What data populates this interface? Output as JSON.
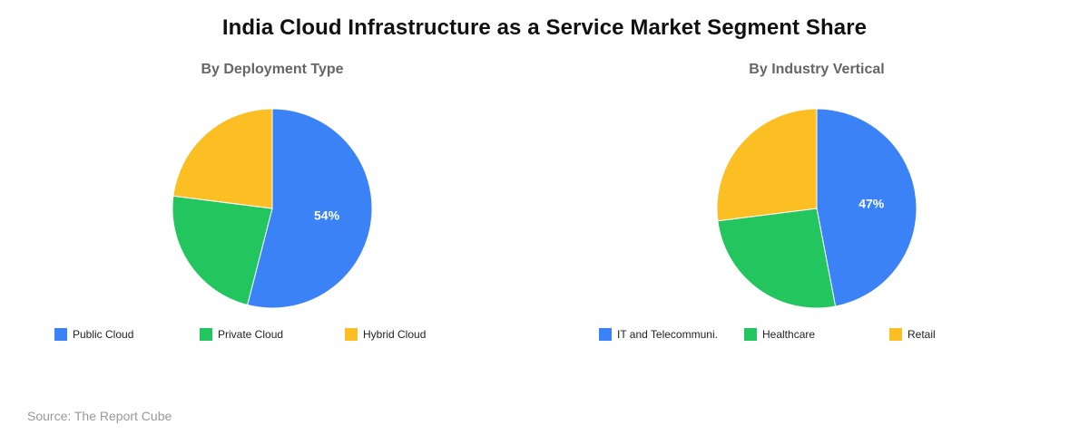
{
  "title": "India Cloud Infrastructure as a Service Market Segment Share",
  "source": "Source: The Report Cube",
  "chart_data": [
    {
      "type": "pie",
      "title": "By Deployment Type",
      "categories": [
        "Public Cloud",
        "Private Cloud",
        "Hybrid Cloud"
      ],
      "values": [
        54,
        23,
        23
      ],
      "colors": [
        "#3b82f6",
        "#22c55e",
        "#fbbf24"
      ],
      "data_labels": [
        "54%",
        "",
        ""
      ],
      "legend_position": "bottom",
      "start_angle": "12 o'clock, clockwise"
    },
    {
      "type": "pie",
      "title": "By Industry Vertical",
      "categories": [
        "IT and Telecommuni.",
        "Healthcare",
        "Retail"
      ],
      "values": [
        47,
        26,
        27
      ],
      "colors": [
        "#3b82f6",
        "#22c55e",
        "#fbbf24"
      ],
      "data_labels": [
        "47%",
        "",
        ""
      ],
      "legend_position": "bottom",
      "start_angle": "12 o'clock, clockwise"
    }
  ]
}
